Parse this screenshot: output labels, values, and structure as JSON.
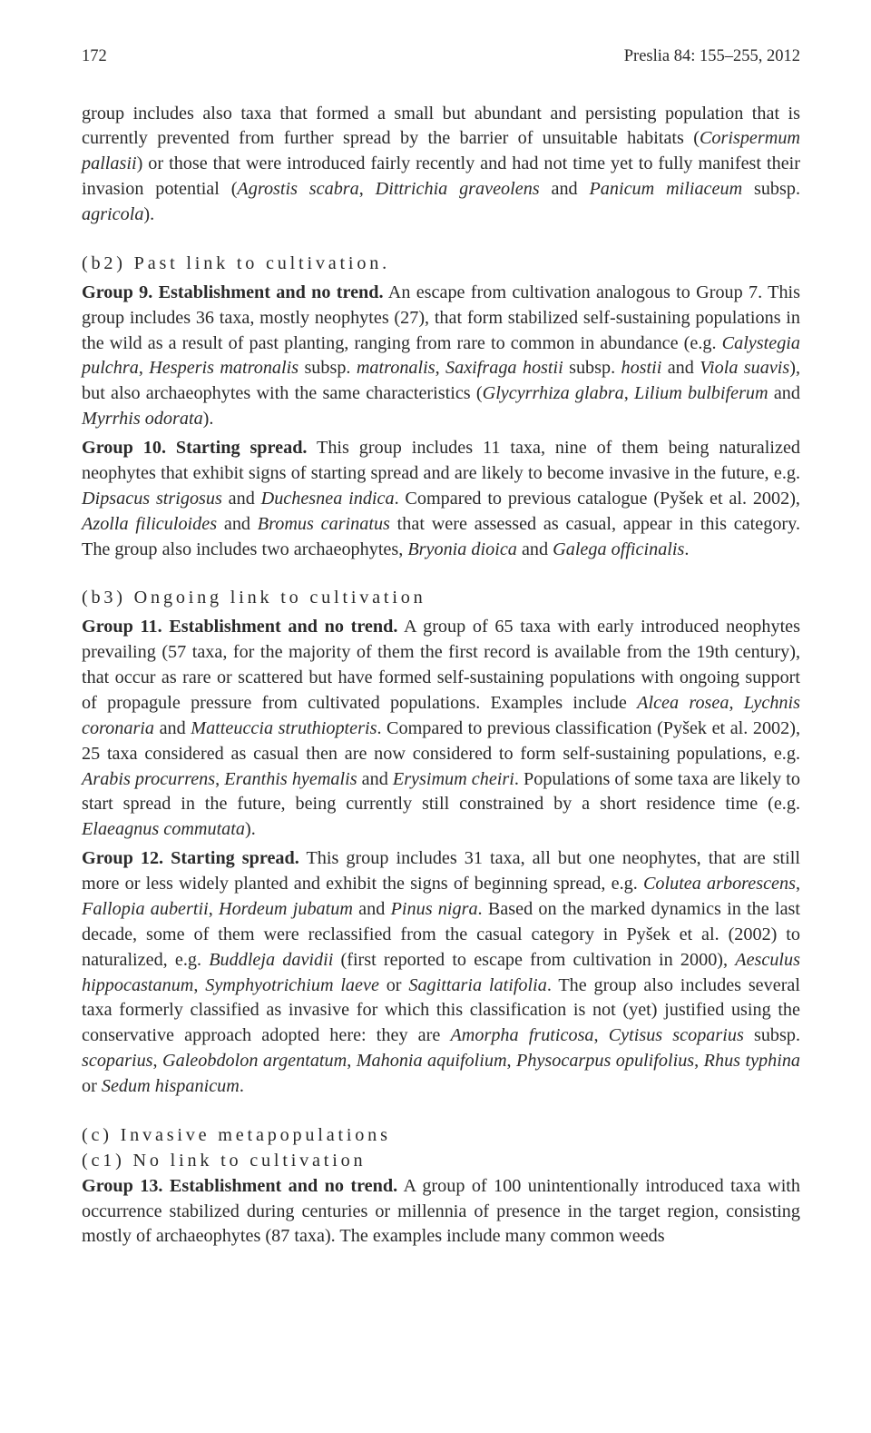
{
  "header": {
    "page_number": "172",
    "running_head": "Preslia 84: 155–255, 2012"
  },
  "body": {
    "p1": "group includes also taxa that formed a small but abundant and persisting population that is currently prevented from further spread by the barrier of unsuitable habitats (<em>Corispermum pallasii</em>) or those that were introduced fairly recently and had not time yet to fully manifest their invasion potential (<em>Agrostis scabra</em>, <em>Dittrichia graveolens</em> and <em>Panicum miliaceum</em> subsp. <em>agricola</em>).",
    "b2_heading": "(b2) Past link to cultivation.",
    "p2": "<b>Group 9. Establishment and no trend.</b> An escape from cultivation analogous to Group 7. This group includes 36 taxa, mostly neophytes (27), that form stabilized self-sustaining populations in the wild as a result of past planting, ranging from rare to common in abundance (e.g. <em>Calystegia pulchra</em>, <em>Hesperis matronalis</em> subsp. <em>matronalis</em>, <em>Saxifraga hostii</em> subsp. <em>hostii</em> and <em>Viola suavis</em>), but also archaeophytes with the same characteristics (<em>Glycyrrhiza glabra</em>, <em>Lilium bulbiferum</em> and <em>Myrrhis odorata</em>).",
    "p3": "<b>Group 10. Starting spread.</b> This group includes 11 taxa, nine of them being naturalized neophytes that exhibit signs of starting spread and are likely to become invasive in the future, e.g. <em>Dipsacus strigosus</em> and <em>Duchesnea indica</em>. Compared to previous catalogue (Pyšek et al. 2002), <em>Azolla filiculoides</em> and <em>Bromus carinatus</em> that were assessed as casual, appear in this category. The group also includes two archaeophytes, <em>Bryonia dioica</em> and <em>Galega officinalis</em>.",
    "b3_heading": "(b3) Ongoing link to cultivation",
    "p4": "<b>Group 11. Establishment and no trend.</b> A group of 65 taxa with early introduced neophytes prevailing (57 taxa, for the majority of them the first record is available from the 19th century), that occur as rare or scattered but have formed self-sustaining populations with ongoing support of propagule pressure from cultivated populations. Examples include <em>Alcea rosea</em>, <em>Lychnis coronaria</em> and <em>Matteuccia struthiopteris</em>. Compared to previous classification (Pyšek et al. 2002), 25 taxa considered as casual then are now considered to form self-sustaining populations, e.g. <em>Arabis procurrens</em>, <em>Eranthis hyemalis</em> and <em>Erysimum cheiri</em>. Populations of some taxa are likely to start spread in the future, being currently still constrained by a short residence time (e.g. <em>Elaeagnus commutata</em>).",
    "p5": "<b>Group 12. Starting spread.</b> This group includes 31 taxa, all but one neophytes, that are still more or less widely planted and exhibit the signs of beginning spread, e.g. <em>Colutea arborescens</em>, <em>Fallopia aubertii</em>, <em>Hordeum jubatum</em> and <em>Pinus nigra</em>. Based on the marked dynamics in the last decade, some of them were reclassified from the casual category in Pyšek et al. (2002) to naturalized, e.g. <em>Buddleja davidii</em> (first reported to escape from cultivation in 2000), <em>Aesculus hippocastanum</em>, <em>Symphyotrichium laeve</em> or <em>Sagittaria latifolia</em>. The group also includes several taxa formerly classified as invasive for which this classification is not (yet) justified using the conservative approach adopted here: they are <em>Amorpha fruticosa</em>, <em>Cytisus scoparius</em> subsp. <em>scoparius</em>, <em>Galeobdolon argentatum</em>, <em>Mahonia aquifolium</em>, <em>Physocarpus opulifolius</em>, <em>Rhus typhina</em> or <em>Sedum hispanicum</em>.",
    "c_heading": "(c) Invasive metapopulations",
    "c1_heading": "(c1) No link to cultivation",
    "p6": "<b>Group 13. Establishment and no trend.</b> A group of 100 unintentionally introduced taxa with occurrence stabilized during centuries or millennia of presence in the target region, consisting mostly of archaeophytes (87 taxa). The examples include many common weeds"
  }
}
